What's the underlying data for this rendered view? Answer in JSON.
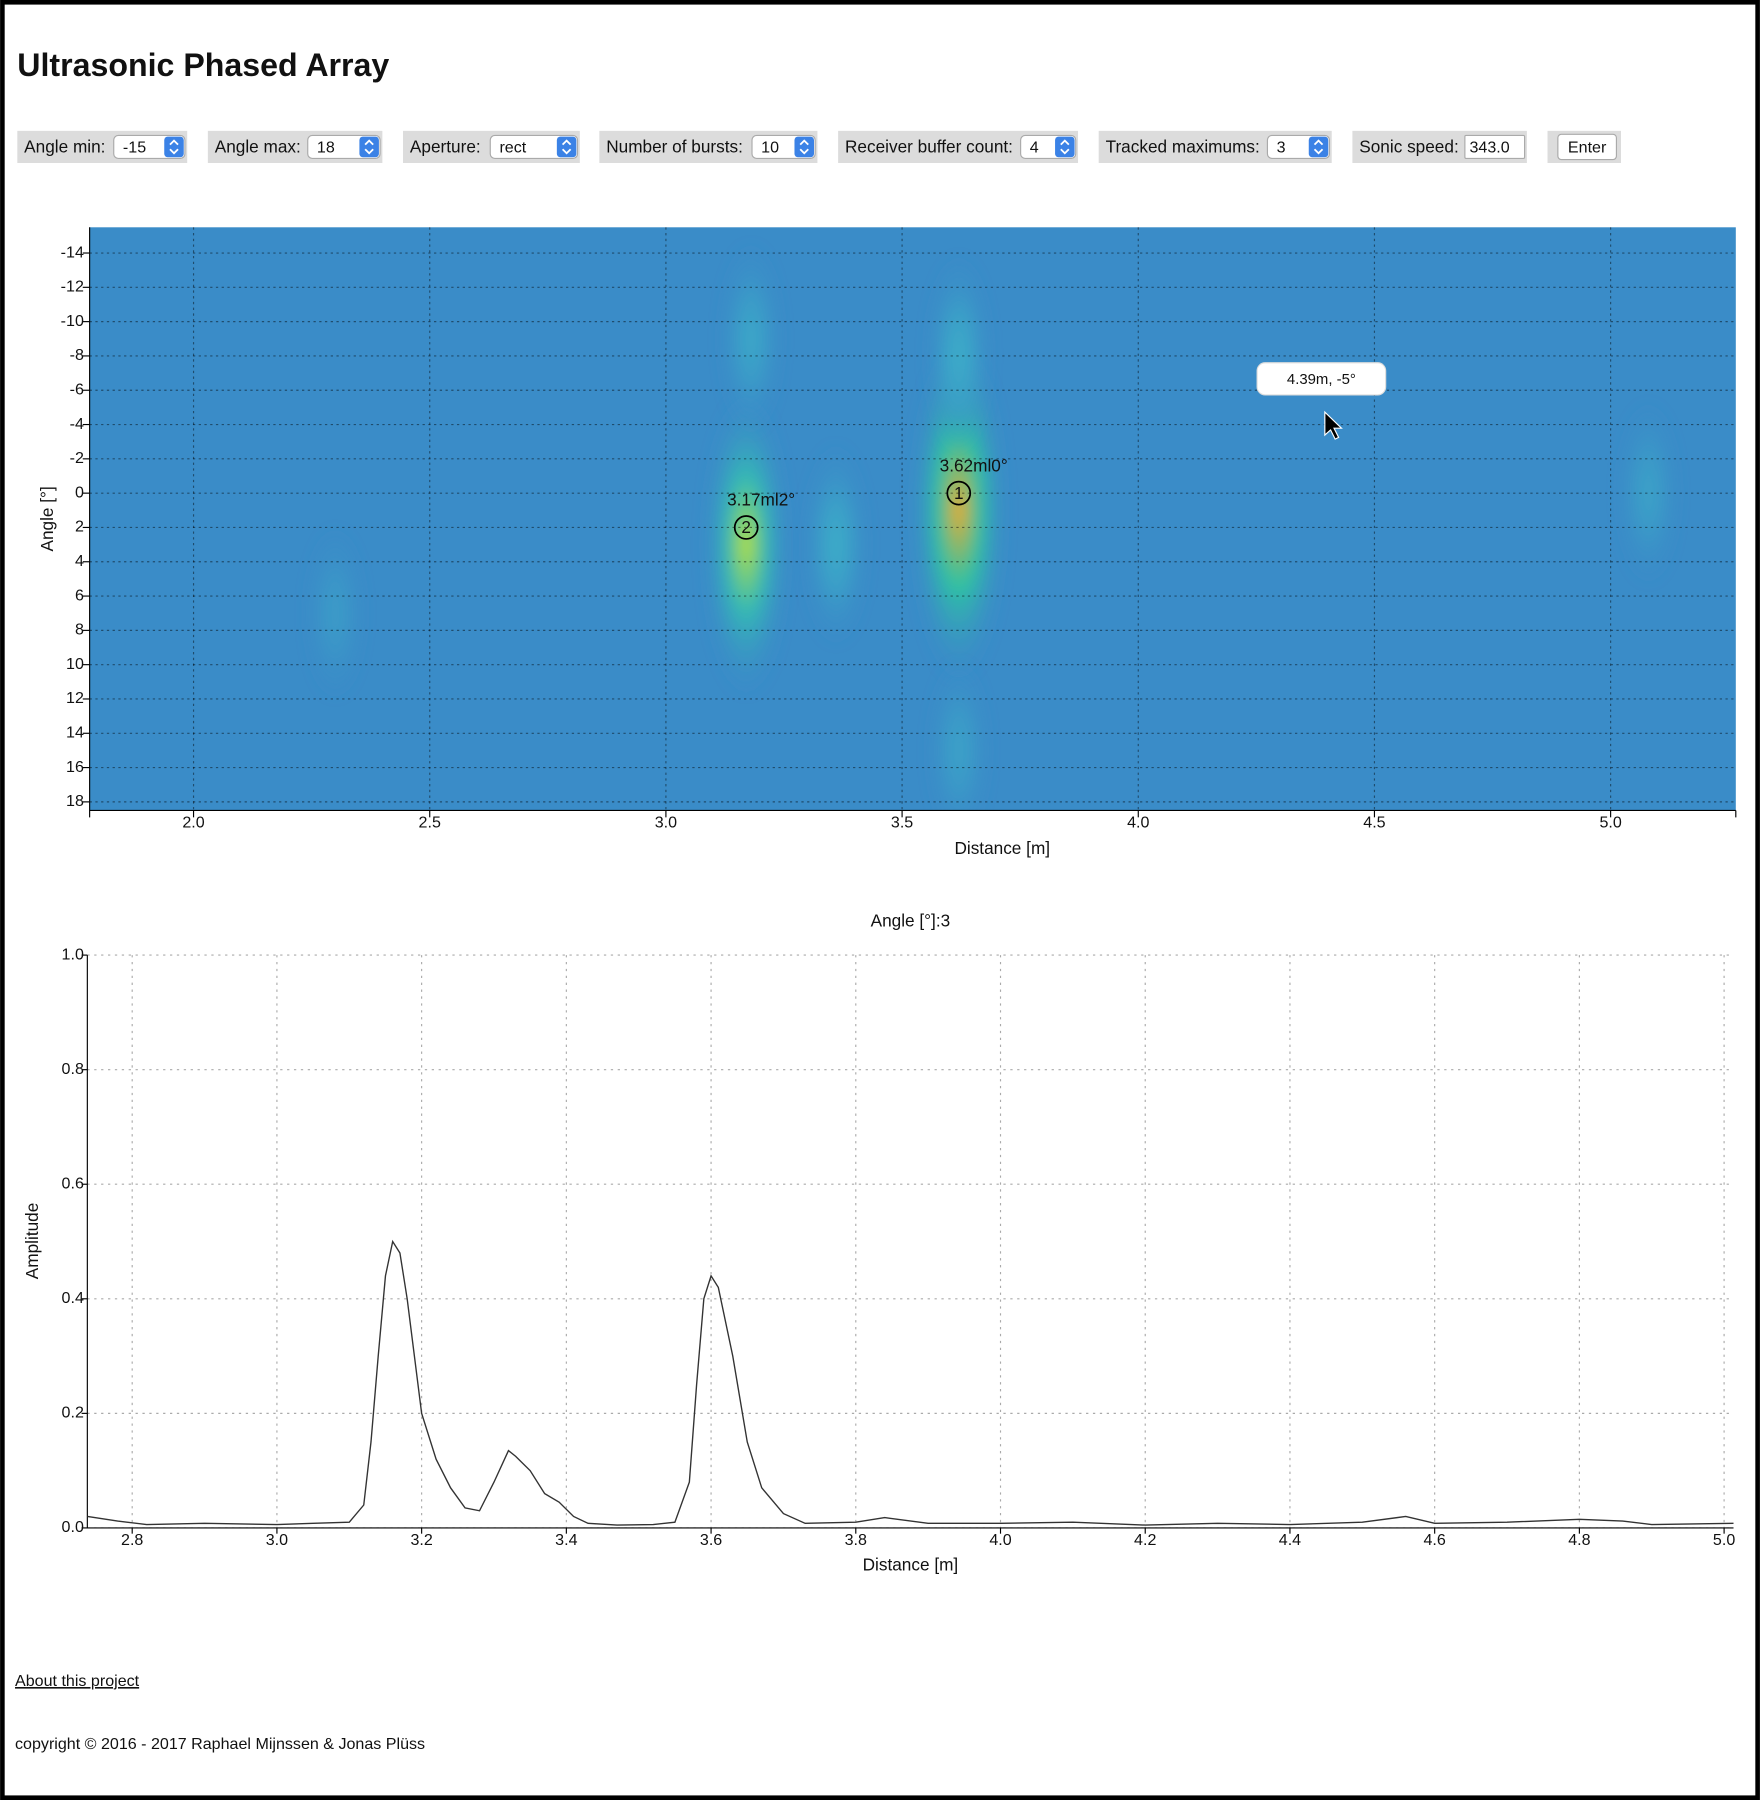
{
  "header": {
    "title": "Ultrasonic Phased Array"
  },
  "controls": [
    {
      "label": "Angle min:",
      "value": "-15"
    },
    {
      "label": "Angle max:",
      "value": "18"
    },
    {
      "label": "Aperture:",
      "value": "rect"
    },
    {
      "label": "Number of bursts:",
      "value": "10"
    },
    {
      "label": "Receiver buffer count:",
      "value": "4"
    },
    {
      "label": "Tracked maximums:",
      "value": "3"
    },
    {
      "label": "Sonic speed:",
      "value": "343.0"
    }
  ],
  "enter_button": "Enter",
  "chart_data": [
    {
      "type": "heatmap",
      "xlabel": "Distance [m]",
      "ylabel": "Angle [°]",
      "xlim": [
        1.78,
        5.265
      ],
      "ylim": [
        -15.5,
        18.5
      ],
      "xticks": [
        {
          "value": 2,
          "label": "2.0"
        },
        2.5,
        {
          "value": 3,
          "label": "3.0"
        },
        3.5,
        {
          "value": 4,
          "label": "4.0"
        },
        4.5,
        {
          "value": 5,
          "label": "5.0"
        }
      ],
      "yticks": [
        -14,
        -12,
        -10,
        -8,
        -6,
        -4,
        -2,
        0,
        2,
        4,
        6,
        8,
        10,
        12,
        14,
        16,
        18
      ],
      "grid": true,
      "blobs": [
        {
          "x": 3.62,
          "y": 1,
          "value": 1.0
        },
        {
          "x": 3.17,
          "y": 3,
          "value": 0.8
        },
        {
          "x": 3.36,
          "y": 3,
          "value": 0.3
        },
        {
          "x": 3.18,
          "y": -9,
          "value": 0.25
        },
        {
          "x": 3.62,
          "y": -8,
          "value": 0.3
        },
        {
          "x": 3.62,
          "y": 15,
          "value": 0.2
        },
        {
          "x": 2.3,
          "y": 7,
          "value": 0.15
        },
        {
          "x": 5.08,
          "y": 0,
          "value": 0.2
        }
      ],
      "maxima": [
        {
          "rank": "1",
          "x": 3.62,
          "y": 0,
          "label": "3.62ml0°"
        },
        {
          "rank": "2",
          "x": 3.17,
          "y": 2,
          "label": "3.17ml2°"
        }
      ],
      "tooltip": "4.39m, -5°"
    },
    {
      "type": "line",
      "title": "Angle [°]:3",
      "xlabel": "Distance [m]",
      "ylabel": "Amplitude",
      "xlim": [
        2.738,
        5.013
      ],
      "ylim": [
        0,
        1
      ],
      "xticks": [
        2.8,
        {
          "value": 3,
          "label": "3.0"
        },
        3.2,
        3.4,
        3.6,
        3.8,
        {
          "value": 4,
          "label": "4.0"
        },
        4.2,
        4.4,
        4.6,
        4.8,
        {
          "value": 5,
          "label": "5.0"
        }
      ],
      "yticks": [
        {
          "value": 0,
          "label": "0.0"
        },
        0.2,
        0.4,
        0.6,
        0.8,
        {
          "value": 1,
          "label": "1.0"
        }
      ],
      "grid": true,
      "color": "#333333",
      "x": [
        2.738,
        2.78,
        2.82,
        2.9,
        3.0,
        3.05,
        3.1,
        3.12,
        3.13,
        3.14,
        3.15,
        3.16,
        3.17,
        3.18,
        3.19,
        3.2,
        3.22,
        3.24,
        3.26,
        3.28,
        3.3,
        3.32,
        3.33,
        3.35,
        3.37,
        3.39,
        3.41,
        3.43,
        3.47,
        3.52,
        3.55,
        3.57,
        3.58,
        3.59,
        3.6,
        3.61,
        3.63,
        3.65,
        3.67,
        3.7,
        3.73,
        3.8,
        3.84,
        3.9,
        4.0,
        4.1,
        4.2,
        4.3,
        4.4,
        4.5,
        4.56,
        4.6,
        4.7,
        4.8,
        4.86,
        4.9,
        5.013
      ],
      "values": [
        0.02,
        0.012,
        0.006,
        0.008,
        0.006,
        0.008,
        0.01,
        0.04,
        0.15,
        0.3,
        0.44,
        0.5,
        0.48,
        0.4,
        0.3,
        0.2,
        0.12,
        0.07,
        0.035,
        0.03,
        0.08,
        0.135,
        0.125,
        0.1,
        0.06,
        0.045,
        0.02,
        0.008,
        0.005,
        0.006,
        0.01,
        0.08,
        0.25,
        0.4,
        0.44,
        0.42,
        0.3,
        0.15,
        0.07,
        0.025,
        0.008,
        0.01,
        0.018,
        0.008,
        0.008,
        0.01,
        0.005,
        0.008,
        0.006,
        0.01,
        0.02,
        0.008,
        0.01,
        0.015,
        0.012,
        0.006,
        0.008
      ]
    }
  ],
  "footer": {
    "link": "About this project",
    "copyright": "copyright © 2016 - 2017 Raphael Mijnssen & Jonas Plüss"
  }
}
